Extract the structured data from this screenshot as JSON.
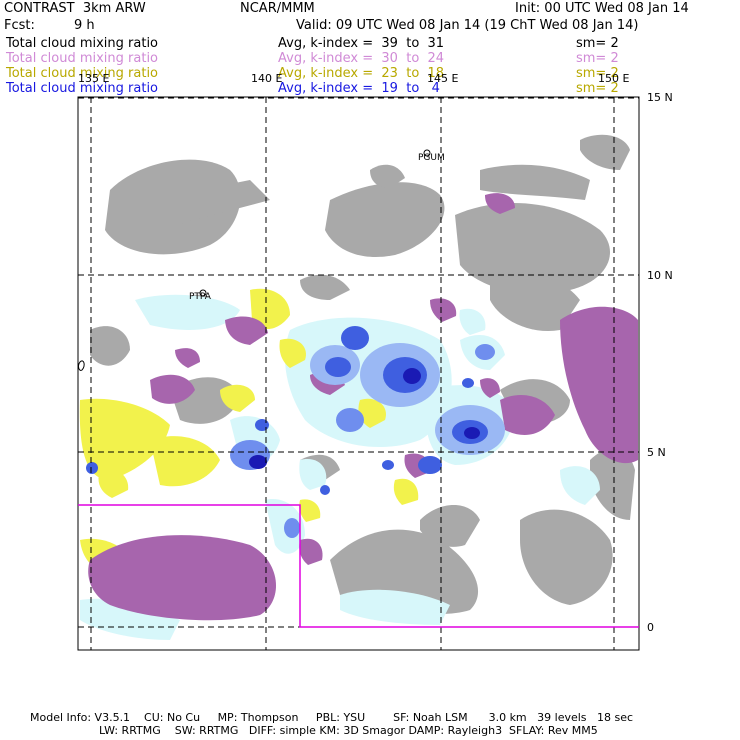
{
  "header": {
    "model": "CONTRAST  3km ARW",
    "center": "NCAR/MMM",
    "init": "Init: 00 UTC Wed 08 Jan 14",
    "fcst_label": "Fcst:",
    "fcst_value": "9 h",
    "valid": "Valid: 09 UTC Wed 08 Jan 14 (19 ChT Wed 08 Jan 14)"
  },
  "fields": [
    {
      "name": "Total cloud mixing ratio",
      "range": "Avg, k-index =  39  to  31",
      "sm": "sm= 2",
      "color": "#000000"
    },
    {
      "name": "Total cloud mixing ratio",
      "range": "Avg, k-index =  30  to  24",
      "sm": "sm= 2",
      "color": "#d08ad6"
    },
    {
      "name": "Total cloud mixing ratio",
      "range": "Avg, k-index =  23  to  18",
      "sm": "sm= 2",
      "color": "#b8a800"
    },
    {
      "name": "Total cloud mixing ratio",
      "range": "Avg, k-index =  19  to   4",
      "sm": "sm= 2",
      "color": "#1818e0"
    }
  ],
  "map": {
    "lon_labels": [
      "135 E",
      "140 E",
      "145 E",
      "150 E"
    ],
    "lat_labels": [
      "15 N",
      "10 N",
      "5 N",
      "0"
    ],
    "stations": [
      "PGUM",
      "PTPA"
    ],
    "layer_colors": {
      "gray": "#a9a9a9",
      "purple": "#a765ad",
      "yellow": "#f2f24c",
      "light_cyan": "#d7f7fa",
      "blue": "#3f5fe0",
      "dark_blue": "#1a1ab4",
      "magenta_box": "#e000e0"
    }
  },
  "footer": {
    "line1": "Model Info: V3.5.1    CU: No Cu     MP: Thompson     PBL: YSU        SF: Noah LSM      3.0 km   39 levels   18 sec",
    "line2": "LW: RRTMG    SW: RRTMG   DIFF: simple KM: 3D Smagor DAMP: Rayleigh3  SFLAY: Rev MM5"
  }
}
